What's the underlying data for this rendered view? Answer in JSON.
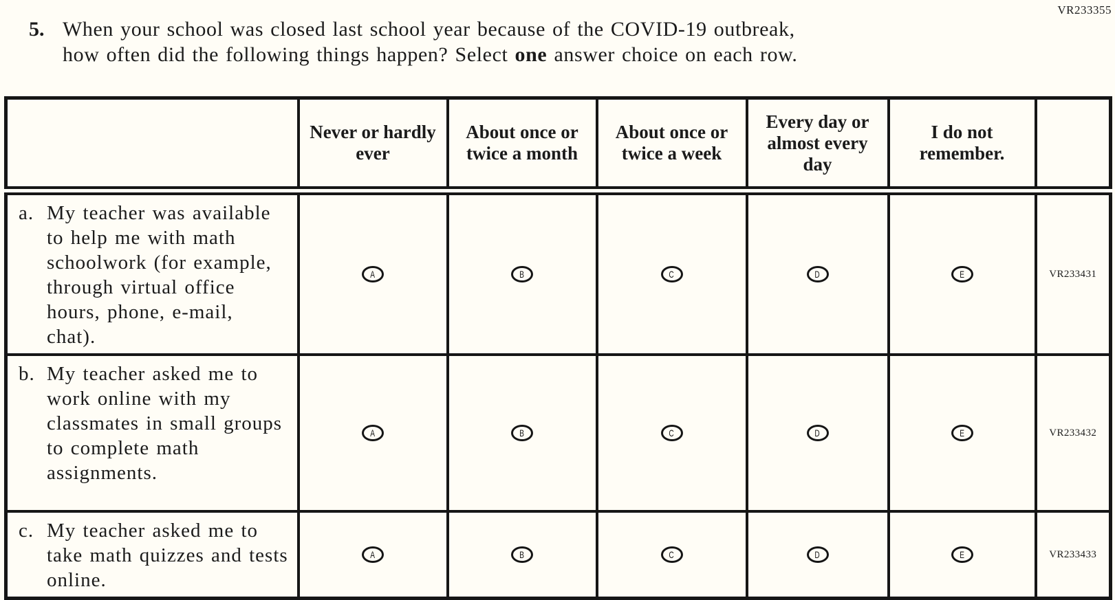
{
  "form_code": "VR233355",
  "question": {
    "number": "5.",
    "line1": "When your school was closed last school year because of the COVID-19 outbreak,",
    "line2_before": "how often did the following things happen? Select ",
    "line2_bold": "one",
    "line2_after": " answer choice on each row."
  },
  "table": {
    "columns": [
      "Never or hardly ever",
      "About once or twice a month",
      "About once or twice a week",
      "Every day or almost every day",
      "I do not remember."
    ],
    "options": [
      "A",
      "B",
      "C",
      "D",
      "E"
    ],
    "rows": [
      {
        "letter": "a.",
        "statement": "My teacher was available to help me with math schoolwork (for example, through virtual office hours, phone, e-mail, chat).",
        "code": "VR233431"
      },
      {
        "letter": "b.",
        "statement": "My teacher asked me to work online with my classmates in small groups to complete math assignments.",
        "code": "VR233432"
      },
      {
        "letter": "c.",
        "statement": "My teacher asked me to take math quizzes and tests online.",
        "code": "VR233433"
      }
    ]
  },
  "colors": {
    "background": "#fffdf6",
    "text": "#1b1b1b",
    "border": "#161616"
  }
}
